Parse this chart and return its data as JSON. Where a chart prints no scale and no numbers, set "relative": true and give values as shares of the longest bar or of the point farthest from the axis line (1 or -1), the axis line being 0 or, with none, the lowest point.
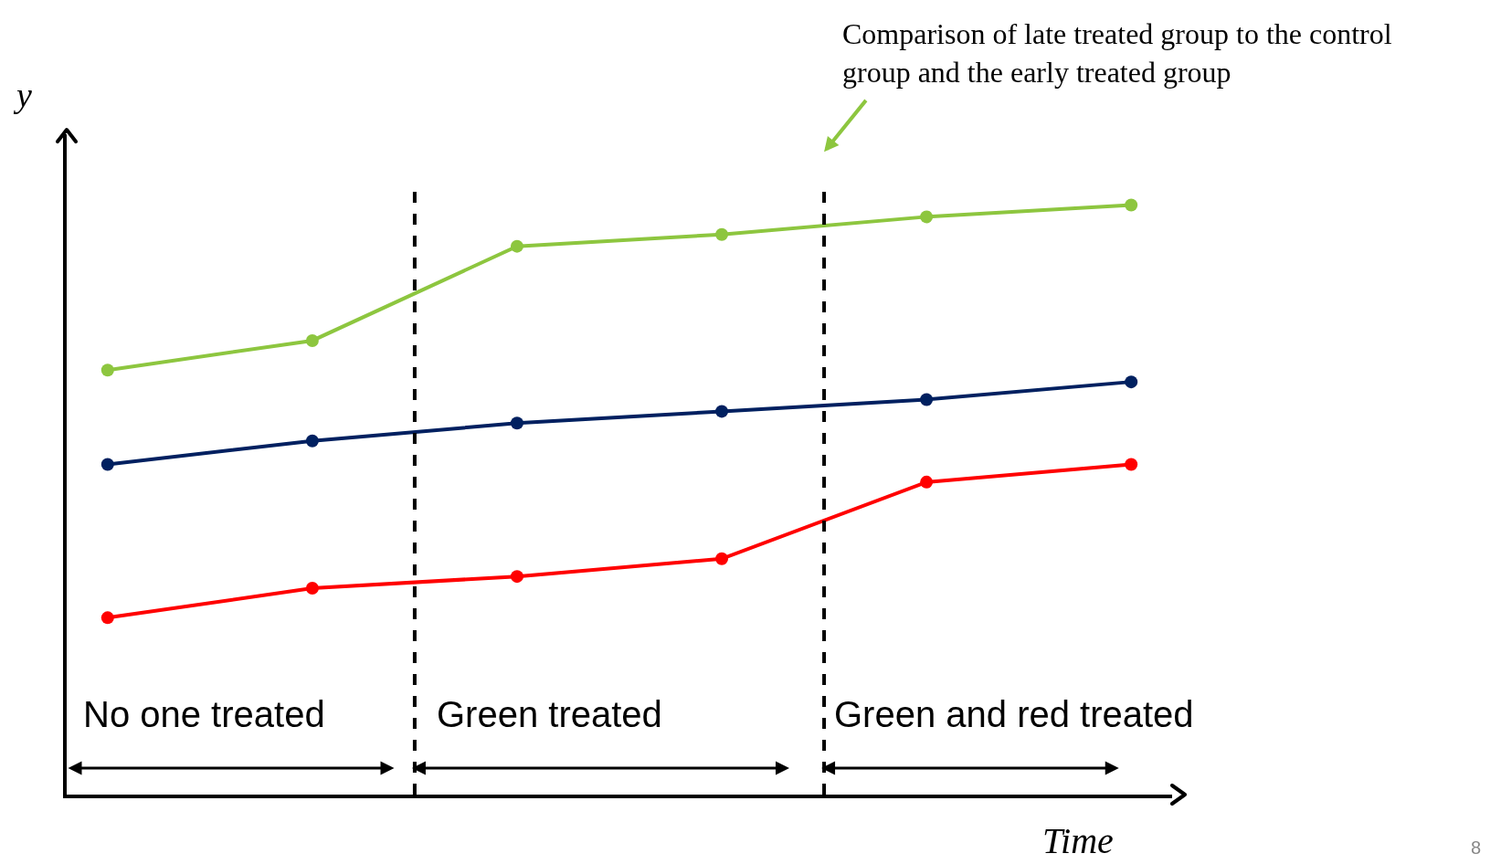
{
  "chart_data": {
    "type": "line",
    "relative": true,
    "categories": [
      null,
      null,
      null,
      null,
      null,
      null
    ],
    "series": [
      {
        "color": "#8dc63f",
        "values": [
          0.72,
          0.77,
          0.93,
          0.95,
          0.98,
          1
        ]
      },
      {
        "color": "#002060",
        "values": [
          0.56,
          0.6,
          0.63,
          0.65,
          0.67,
          0.7
        ]
      },
      {
        "color": "#ff0000",
        "values": [
          0.3,
          0.35,
          0.37,
          0.4,
          0.53,
          0.56
        ]
      }
    ],
    "xlabel": "Time",
    "ylabel": "y",
    "annotations": [
      "No one treated",
      "Green treated",
      "Green and red treated",
      "Comparison of late treated group to the control group and the early treated group",
      "8"
    ],
    "marker": "circle",
    "line_style": "solid",
    "grid": false
  }
}
